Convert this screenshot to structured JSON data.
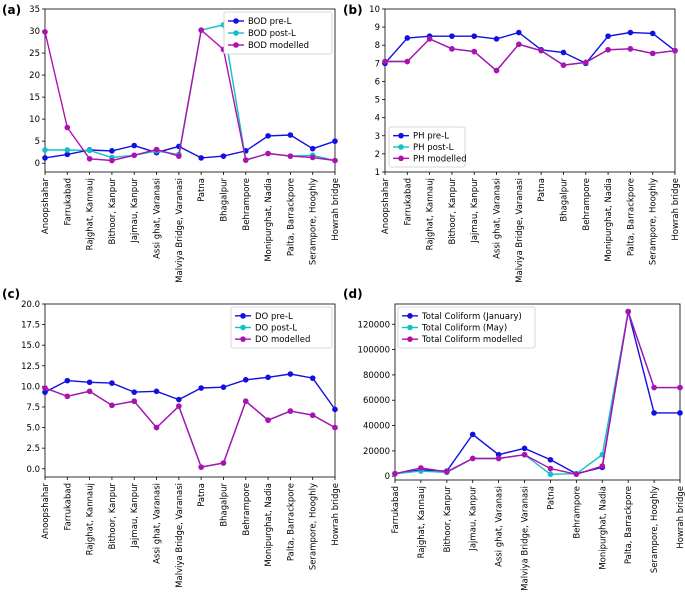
{
  "colors": {
    "pre": "#1010e0",
    "post": "#12c0c8",
    "model": "#b010b0"
  },
  "chart_data": [
    {
      "type": "line",
      "panel": "(a)",
      "categories": [
        "Anoopshahar",
        "Farrukabad",
        "Rajghat, Kannauj",
        "Bithoor, Kanpur",
        "Jajmau, Kanpur",
        "Assi ghat, Varanasi",
        "Malviya Bridge, Varanasi",
        "Patna",
        "Bhagalpur",
        "Behrampore",
        "Monipurghat, Nadia",
        "Palta, Barrackpore",
        "Serampore, Hooghly",
        "Howrah bridge"
      ],
      "ylim": [
        -2,
        35
      ],
      "yticks": [
        0,
        5,
        10,
        15,
        20,
        25,
        30,
        35
      ],
      "legend_position": "top-right",
      "series": [
        {
          "name": "BOD pre-L",
          "color_key": "pre",
          "values": [
            1.2,
            2.0,
            3.0,
            2.8,
            4.0,
            2.4,
            3.8,
            1.2,
            1.6,
            2.8,
            6.2,
            6.4,
            3.3,
            5.0
          ]
        },
        {
          "name": "BOD post-L",
          "color_key": "post",
          "values": [
            3.0,
            3.0,
            2.9,
            1.3,
            1.8,
            2.8,
            2.0,
            30.2,
            31.4,
            0.7,
            2.2,
            1.6,
            1.8,
            0.6
          ]
        },
        {
          "name": "BOD modelled",
          "color_key": "model",
          "values": [
            29.8,
            8.1,
            1.0,
            0.6,
            1.8,
            3.1,
            1.6,
            30.2,
            25.8,
            0.7,
            2.2,
            1.6,
            1.3,
            0.6
          ]
        }
      ]
    },
    {
      "type": "line",
      "panel": "(b)",
      "categories": [
        "Anoopshahar",
        "Farrukabad",
        "Rajghat, Kannauj",
        "Bithoor, Kanpur",
        "Jajmau, Kanpur",
        "Assi ghat, Varanasi",
        "Malviya Bridge, Varanasi",
        "Patna",
        "Bhagalpur",
        "Behrampore",
        "Monipurghat, Nadia",
        "Palta, Barrackpore",
        "Serampore, Hooghly",
        "Howrah bridge"
      ],
      "ylim": [
        1,
        10
      ],
      "yticks": [
        1,
        2,
        3,
        4,
        5,
        6,
        7,
        8,
        9,
        10
      ],
      "legend_position": "bottom-left",
      "series": [
        {
          "name": "PH pre-L",
          "color_key": "pre",
          "values": [
            7.0,
            8.4,
            8.5,
            8.5,
            8.5,
            8.35,
            8.7,
            7.75,
            7.6,
            7.0,
            8.5,
            8.7,
            8.65,
            7.7
          ]
        },
        {
          "name": "PH post-L",
          "color_key": "post",
          "values": [
            7.1,
            7.1,
            8.35,
            7.8,
            7.65,
            6.6,
            8.05,
            7.7,
            6.9,
            7.05,
            7.75,
            7.8,
            7.55,
            7.7
          ]
        },
        {
          "name": "PH modelled",
          "color_key": "model",
          "values": [
            7.1,
            7.1,
            8.35,
            7.8,
            7.65,
            6.6,
            8.05,
            7.7,
            6.9,
            7.05,
            7.75,
            7.8,
            7.55,
            7.7
          ]
        }
      ]
    },
    {
      "type": "line",
      "panel": "(c)",
      "categories": [
        "Anoopshahar",
        "Farrukabad",
        "Rajghat, Kannauj",
        "Bithoor, Kanpur",
        "Jajmau, Kanpur",
        "Assi ghat, Varanasi",
        "Malviya Bridge, Varanasi",
        "Patna",
        "Bhagalpur",
        "Behrampore",
        "Monipurghat, Nadia",
        "Palta, Barrackpore",
        "Serampore, Hooghly",
        "Howrah bridge"
      ],
      "ylim": [
        -1,
        20
      ],
      "yticks": [
        0.0,
        2.5,
        5.0,
        7.5,
        10.0,
        12.5,
        15.0,
        17.5,
        20.0
      ],
      "tick_labels": [
        "0.0",
        "2.5",
        "5.0",
        "7.5",
        "10.0",
        "12.5",
        "15.0",
        "17.5",
        "20.0"
      ],
      "legend_position": "top-right",
      "series": [
        {
          "name": "DO pre-L",
          "color_key": "pre",
          "values": [
            9.3,
            10.7,
            10.5,
            10.4,
            9.3,
            9.4,
            8.4,
            9.8,
            9.9,
            10.8,
            11.1,
            11.5,
            11.0,
            7.2
          ]
        },
        {
          "name": "DO post-L",
          "color_key": "post",
          "values": [
            9.8,
            8.8,
            9.4,
            7.7,
            8.2,
            5.0,
            7.6,
            0.2,
            0.7,
            8.2,
            5.9,
            7.0,
            6.5,
            5.0
          ]
        },
        {
          "name": "DO modelled",
          "color_key": "model",
          "values": [
            9.8,
            8.8,
            9.4,
            7.7,
            8.2,
            5.0,
            7.6,
            0.2,
            0.7,
            8.2,
            5.9,
            7.0,
            6.5,
            5.0
          ]
        }
      ]
    },
    {
      "type": "line",
      "panel": "(d)",
      "categories": [
        "Farrukabad",
        "Rajghat, Kannauj",
        "Bithoor, Kanpur",
        "Jajmau, Kanpur",
        "Assi ghat, Varanasi",
        "Malviya Bridge, Varanasi",
        "Patna",
        "Behrampore",
        "Monipurghat, Nadia",
        "Palta, Barrackpore",
        "Serampore, Hooghly",
        "Howrah bridge"
      ],
      "ylim": [
        -3000,
        136000
      ],
      "yticks": [
        0,
        20000,
        40000,
        60000,
        80000,
        100000,
        120000
      ],
      "legend_position": "top-left",
      "series": [
        {
          "name": "Total Coliform (January)",
          "color_key": "pre",
          "values": [
            2000,
            5000,
            4000,
            33000,
            17000,
            22000,
            13000,
            2000,
            7000,
            130000,
            50000,
            50000
          ]
        },
        {
          "name": "Total Coliform (May)",
          "color_key": "post",
          "values": [
            2000,
            4000,
            3000,
            14000,
            14000,
            17000,
            1500,
            2000,
            17000,
            130000,
            70000,
            70000
          ]
        },
        {
          "name": "Total Coliform modelled",
          "color_key": "model",
          "values": [
            2000,
            6500,
            3500,
            14000,
            14000,
            17000,
            6000,
            1500,
            8000,
            130000,
            70000,
            70000
          ]
        }
      ]
    }
  ]
}
